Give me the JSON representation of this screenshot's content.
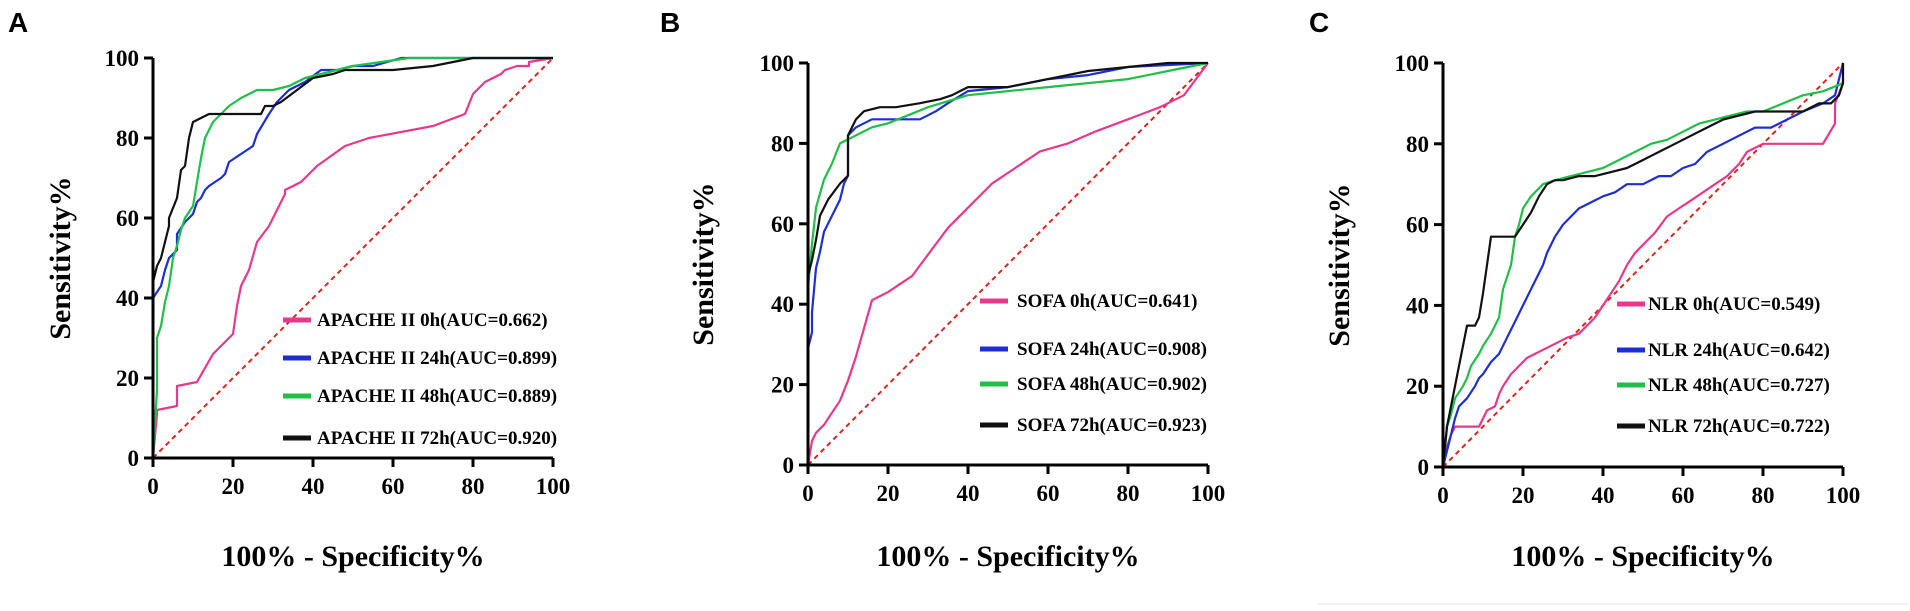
{
  "chart_data": [
    {
      "panel": "A",
      "type": "line",
      "xlabel": "100% - Specificity%",
      "ylabel": "Sensitivity%",
      "xlim": [
        0,
        100
      ],
      "ylim": [
        0,
        100
      ],
      "xticks": [
        "0",
        "20",
        "40",
        "60",
        "80",
        "100"
      ],
      "yticks": [
        "0",
        "20",
        "40",
        "60",
        "80",
        "100"
      ],
      "series": [
        {
          "name": "APACHE II 0h(AUC=0.662)",
          "color": "#e8388a",
          "x": [
            0,
            1,
            1,
            6,
            6,
            11,
            11,
            15,
            20,
            21,
            22,
            24,
            26,
            29,
            31,
            33,
            33,
            37,
            41,
            48,
            54,
            70,
            78,
            80,
            83,
            87,
            88,
            91,
            94,
            94,
            100
          ],
          "y": [
            0,
            11,
            12,
            13,
            18,
            19,
            19,
            26,
            31,
            38,
            43,
            47,
            54,
            58,
            62,
            66,
            67,
            69,
            73,
            78,
            80,
            83,
            86,
            91,
            94,
            96,
            97,
            98,
            98,
            99,
            100
          ]
        },
        {
          "name": "APACHE II 24h(AUC=0.899)",
          "color": "#1d2fd0",
          "x": [
            0,
            0,
            2,
            3,
            4,
            6,
            6,
            8,
            10,
            11,
            12,
            13,
            14,
            17,
            18,
            19,
            22,
            25,
            26,
            29,
            31,
            34,
            38,
            42,
            46,
            50,
            55,
            62,
            80,
            100
          ],
          "y": [
            0,
            40,
            43,
            47,
            50,
            52,
            56,
            59,
            61,
            64,
            65,
            67,
            68,
            70,
            71,
            74,
            76,
            78,
            81,
            86,
            89,
            92,
            94,
            97,
            97,
            98,
            98,
            100,
            100,
            100
          ]
        },
        {
          "name": "APACHE II 48h(AUC=0.889)",
          "color": "#1fbf4a",
          "x": [
            0,
            1,
            1,
            2,
            3,
            4,
            5,
            6,
            7,
            8,
            10,
            12,
            13,
            15,
            19,
            22,
            26,
            30,
            34,
            38,
            42,
            50,
            57,
            64,
            100
          ],
          "y": [
            0,
            17,
            30,
            33,
            39,
            43,
            50,
            53,
            57,
            60,
            63,
            75,
            80,
            84,
            88,
            90,
            92,
            92,
            93,
            95,
            96,
            98,
            99,
            100,
            100
          ]
        },
        {
          "name": "APACHE II 72h(AUC=0.920)",
          "color": "#111111",
          "x": [
            0,
            0,
            1,
            2,
            3,
            4,
            4,
            6,
            7,
            8,
            9,
            10,
            12,
            14,
            20,
            23,
            27,
            28,
            30,
            32,
            36,
            40,
            45,
            48,
            54,
            60,
            70,
            80,
            90,
            100
          ],
          "y": [
            0,
            44,
            48,
            50,
            54,
            58,
            60,
            65,
            72,
            73,
            80,
            84,
            85,
            86,
            86,
            86,
            86,
            88,
            88,
            89,
            92,
            95,
            96,
            97,
            97,
            97,
            98,
            100,
            100,
            100
          ]
        }
      ]
    },
    {
      "panel": "B",
      "type": "line",
      "xlabel": "100% - Specificity%",
      "ylabel": "Sensitivity%",
      "xlim": [
        0,
        100
      ],
      "ylim": [
        0,
        100
      ],
      "xticks": [
        "0",
        "20",
        "40",
        "60",
        "80",
        "100"
      ],
      "yticks": [
        "0",
        "20",
        "40",
        "60",
        "80",
        "100"
      ],
      "series": [
        {
          "name": "SOFA 0h(AUC=0.641)",
          "color": "#e8388a",
          "x": [
            0,
            1,
            2,
            4,
            6,
            8,
            10,
            12,
            14,
            16,
            20,
            23,
            26,
            29,
            32,
            35,
            40,
            46,
            52,
            58,
            65,
            72,
            80,
            88,
            94,
            100
          ],
          "y": [
            0,
            6,
            8,
            10,
            13,
            16,
            21,
            27,
            34,
            41,
            43,
            45,
            47,
            51,
            55,
            59,
            64,
            70,
            74,
            78,
            80,
            83,
            86,
            89,
            92,
            100
          ]
        },
        {
          "name": "SOFA 24h(AUC=0.908)",
          "color": "#1d2fd0",
          "x": [
            0,
            0,
            1,
            1,
            2,
            3,
            4,
            6,
            8,
            9,
            10,
            10,
            12,
            14,
            16,
            19,
            22,
            28,
            32,
            35,
            40,
            50,
            60,
            70,
            80,
            100
          ],
          "y": [
            0,
            29,
            33,
            38,
            49,
            53,
            58,
            62,
            66,
            70,
            72,
            82,
            84,
            85,
            86,
            86,
            86,
            86,
            88,
            90,
            93,
            94,
            96,
            97,
            99,
            100
          ]
        },
        {
          "name": "SOFA 48h(AUC=0.902)",
          "color": "#1fbf4a",
          "x": [
            0,
            0,
            1,
            2,
            4,
            6,
            8,
            10,
            12,
            16,
            20,
            25,
            30,
            40,
            50,
            60,
            70,
            80,
            90,
            100
          ],
          "y": [
            0,
            44,
            55,
            64,
            71,
            75,
            80,
            81,
            82,
            84,
            85,
            87,
            89,
            92,
            93,
            94,
            95,
            96,
            98,
            100
          ]
        },
        {
          "name": "SOFA 72h(AUC=0.923)",
          "color": "#111111",
          "x": [
            0,
            0,
            1,
            2,
            3,
            5,
            8,
            10,
            10,
            12,
            14,
            18,
            22,
            28,
            33,
            36,
            40,
            50,
            60,
            70,
            80,
            90,
            100
          ],
          "y": [
            0,
            47,
            51,
            56,
            62,
            66,
            70,
            72,
            82,
            86,
            88,
            89,
            89,
            90,
            91,
            92,
            94,
            94,
            96,
            98,
            99,
            100,
            100
          ]
        }
      ]
    },
    {
      "panel": "C",
      "type": "line",
      "xlabel": "100% - Specificity%",
      "ylabel": "Sensitivity%",
      "xlim": [
        0,
        100
      ],
      "ylim": [
        0,
        100
      ],
      "xticks": [
        "0",
        "20",
        "40",
        "60",
        "80",
        "100"
      ],
      "yticks": [
        "0",
        "20",
        "40",
        "60",
        "80",
        "100"
      ],
      "series": [
        {
          "name": "NLR 0h(AUC=0.549)",
          "color": "#e8388a",
          "x": [
            0,
            1,
            2,
            3,
            5,
            7,
            9,
            10,
            11,
            13,
            14,
            15,
            17,
            19,
            21,
            23,
            25,
            27,
            29,
            31,
            34,
            36,
            38,
            40,
            42,
            44,
            46,
            48,
            50,
            53,
            56,
            59,
            62,
            65,
            68,
            71,
            74,
            76,
            80,
            85,
            90,
            95,
            98,
            98,
            100,
            100
          ],
          "y": [
            0,
            5,
            8,
            10,
            10,
            10,
            10,
            12,
            14,
            15,
            18,
            20,
            23,
            25,
            27,
            28,
            29,
            30,
            31,
            32,
            33,
            35,
            37,
            40,
            43,
            46,
            50,
            53,
            55,
            58,
            62,
            64,
            66,
            68,
            70,
            72,
            75,
            78,
            80,
            80,
            80,
            80,
            85,
            90,
            95,
            100
          ]
        },
        {
          "name": "NLR 24h(AUC=0.642)",
          "color": "#1d2fd0",
          "x": [
            0,
            1,
            2,
            3,
            4,
            6,
            8,
            9,
            10,
            12,
            14,
            15,
            16,
            18,
            20,
            21,
            22,
            24,
            25,
            26,
            28,
            30,
            32,
            34,
            36,
            38,
            40,
            43,
            46,
            50,
            54,
            57,
            60,
            63,
            66,
            70,
            74,
            78,
            82,
            86,
            90,
            95,
            98,
            100
          ],
          "y": [
            0,
            4,
            8,
            12,
            15,
            17,
            20,
            22,
            23,
            26,
            28,
            30,
            32,
            36,
            40,
            42,
            44,
            48,
            50,
            53,
            57,
            60,
            62,
            64,
            65,
            66,
            67,
            68,
            70,
            70,
            72,
            72,
            74,
            75,
            78,
            80,
            82,
            84,
            84,
            86,
            88,
            90,
            92,
            100
          ]
        },
        {
          "name": "NLR 48h(AUC=0.727)",
          "color": "#1fbf4a",
          "x": [
            0,
            1,
            2,
            3,
            5,
            6,
            7,
            9,
            10,
            12,
            14,
            15,
            17,
            18,
            19,
            20,
            22,
            23,
            25,
            28,
            32,
            36,
            40,
            44,
            48,
            52,
            56,
            60,
            64,
            68,
            72,
            76,
            80,
            85,
            90,
            95,
            100
          ],
          "y": [
            0,
            10,
            13,
            17,
            20,
            22,
            25,
            28,
            30,
            33,
            37,
            44,
            50,
            57,
            60,
            64,
            67,
            68,
            70,
            71,
            72,
            73,
            74,
            76,
            78,
            80,
            81,
            83,
            85,
            86,
            87,
            88,
            88,
            90,
            92,
            93,
            95
          ]
        },
        {
          "name": "NLR 72h(AUC=0.722)",
          "color": "#111111",
          "x": [
            0,
            1,
            2,
            3,
            5,
            6,
            8,
            9,
            10,
            11,
            12,
            14,
            16,
            18,
            20,
            22,
            24,
            26,
            28,
            30,
            34,
            38,
            42,
            46,
            50,
            54,
            58,
            62,
            66,
            70,
            74,
            78,
            82,
            86,
            90,
            94,
            97,
            99,
            100,
            100
          ],
          "y": [
            0,
            10,
            15,
            20,
            30,
            35,
            35,
            37,
            43,
            50,
            57,
            57,
            57,
            57,
            60,
            63,
            67,
            70,
            71,
            71,
            72,
            72,
            73,
            74,
            76,
            78,
            80,
            82,
            84,
            86,
            87,
            88,
            88,
            88,
            88,
            90,
            90,
            92,
            95,
            100
          ]
        }
      ]
    }
  ]
}
